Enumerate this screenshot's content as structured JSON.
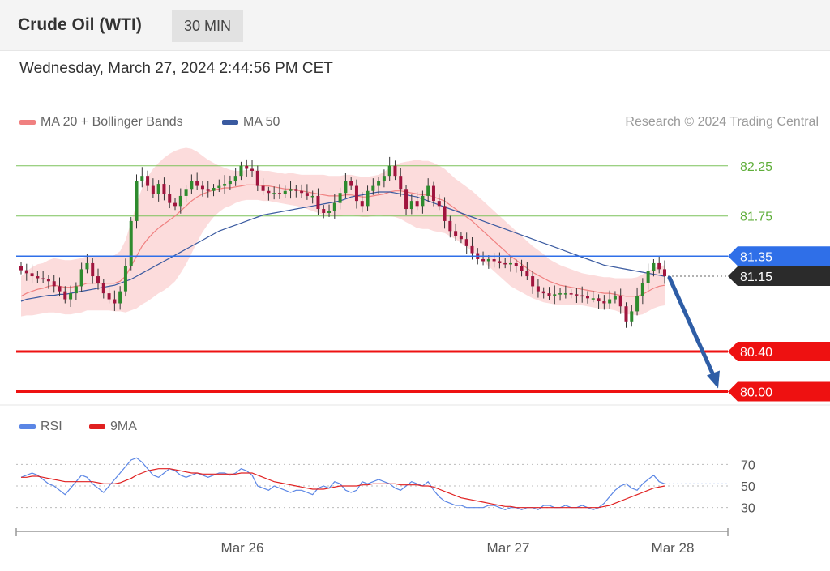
{
  "header": {
    "title": "Crude Oil (WTI)",
    "timeframe": "30 MIN"
  },
  "timestamp": "Wednesday, March 27, 2024 2:44:56 PM CET",
  "legend": {
    "ma20": {
      "label": "MA 20 + Bollinger Bands",
      "color": "#f08080"
    },
    "ma50": {
      "label": "MA 50",
      "color": "#3a5aa0"
    }
  },
  "credit": "Research © 2024 Trading Central",
  "rsi_legend": {
    "rsi": {
      "label": "RSI",
      "color": "#5b86e5"
    },
    "ma9": {
      "label": "9MA",
      "color": "#e02020"
    }
  },
  "chart_data": [
    {
      "type": "candlestick",
      "title": "Crude Oil (WTI)",
      "timeframe": "30 MIN",
      "x_ticks": [
        "Mar 26",
        "Mar 27",
        "Mar 28"
      ],
      "ylim": [
        79.98,
        82.45
      ],
      "levels": [
        {
          "value": 82.25,
          "label": "82.25",
          "color": "#7cc25a",
          "style": "thin"
        },
        {
          "value": 81.75,
          "label": "81.75",
          "color": "#7cc25a",
          "style": "thin"
        },
        {
          "value": 81.35,
          "label": "81.35",
          "color": "#2f6fe8",
          "style": "pivot"
        },
        {
          "value": 80.4,
          "label": "80.40",
          "color": "#ee1111",
          "style": "support"
        },
        {
          "value": 80.0,
          "label": "80.00",
          "color": "#ee1111",
          "style": "support"
        }
      ],
      "last_price": {
        "value": 81.15,
        "label": "81.15"
      },
      "forecast_arrow": {
        "from": 81.15,
        "to": 80.0,
        "color": "#2e5da6"
      },
      "close": [
        81.21,
        81.18,
        81.15,
        81.13,
        81.12,
        81.1,
        81.05,
        81.0,
        80.92,
        80.98,
        81.05,
        81.22,
        81.28,
        81.15,
        81.08,
        80.98,
        80.92,
        80.88,
        81.0,
        81.25,
        81.7,
        82.1,
        82.15,
        82.05,
        81.97,
        82.07,
        81.97,
        81.88,
        81.85,
        81.95,
        82.02,
        82.1,
        82.05,
        82.02,
        82.0,
        82.03,
        82.05,
        82.07,
        82.1,
        82.15,
        82.25,
        82.22,
        82.2,
        82.05,
        82.0,
        81.98,
        81.98,
        81.97,
        82.0,
        82.02,
        82.0,
        81.98,
        81.95,
        81.95,
        81.82,
        81.78,
        81.8,
        81.88,
        81.98,
        82.1,
        82.05,
        81.9,
        81.85,
        82.0,
        82.05,
        82.1,
        82.15,
        82.25,
        82.15,
        82.02,
        81.82,
        81.9,
        81.85,
        81.95,
        82.05,
        81.9,
        81.85,
        81.7,
        81.6,
        81.55,
        81.52,
        81.45,
        81.38,
        81.32,
        81.3,
        81.32,
        81.3,
        81.28,
        81.27,
        81.28,
        81.25,
        81.2,
        81.15,
        81.05,
        81.0,
        80.98,
        80.95,
        80.97,
        80.98,
        80.98,
        80.97,
        80.96,
        80.95,
        80.93,
        80.93,
        80.9,
        80.88,
        80.92,
        80.95,
        80.85,
        80.7,
        80.8,
        80.95,
        81.08,
        81.2,
        81.28,
        81.22,
        81.15
      ],
      "ma20": [
        80.95,
        80.98,
        81.0,
        81.02,
        81.03,
        81.05,
        81.06,
        81.05,
        81.04,
        81.04,
        81.05,
        81.06,
        81.08,
        81.08,
        81.08,
        81.08,
        81.08,
        81.08,
        81.1,
        81.15,
        81.25,
        81.35,
        81.45,
        81.52,
        81.58,
        81.63,
        81.67,
        81.71,
        81.75,
        81.8,
        81.85,
        81.9,
        81.94,
        81.97,
        81.99,
        82.01,
        82.02,
        82.03,
        82.03,
        82.04,
        82.05,
        82.06,
        82.06,
        82.06,
        82.05,
        82.05,
        82.04,
        82.03,
        82.02,
        82.02,
        82.01,
        82.0,
        81.99,
        81.98,
        81.97,
        81.96,
        81.95,
        81.95,
        81.95,
        81.96,
        81.96,
        81.95,
        81.94,
        81.94,
        81.95,
        81.96,
        81.97,
        81.99,
        82.0,
        82.0,
        81.99,
        81.98,
        81.97,
        81.96,
        81.96,
        81.94,
        81.92,
        81.9,
        81.86,
        81.82,
        81.78,
        81.74,
        81.7,
        81.65,
        81.6,
        81.55,
        81.5,
        81.45,
        81.4,
        81.35,
        81.31,
        81.27,
        81.23,
        81.19,
        81.16,
        81.13,
        81.1,
        81.08,
        81.06,
        81.05,
        81.04,
        81.03,
        81.02,
        81.01,
        81.0,
        80.99,
        80.98,
        80.98,
        80.97,
        80.96,
        80.95,
        80.95,
        80.95,
        80.97,
        81.0,
        81.03,
        81.05,
        81.06
      ],
      "ma50": [
        80.9,
        80.92,
        80.93,
        80.94,
        80.95,
        80.96,
        80.96,
        80.97,
        80.97,
        80.98,
        80.99,
        81.0,
        81.01,
        81.02,
        81.03,
        81.04,
        81.05,
        81.06,
        81.08,
        81.1,
        81.12,
        81.15,
        81.18,
        81.21,
        81.24,
        81.27,
        81.3,
        81.33,
        81.36,
        81.39,
        81.42,
        81.45,
        81.48,
        81.51,
        81.54,
        81.57,
        81.6,
        81.62,
        81.64,
        81.66,
        81.68,
        81.7,
        81.72,
        81.74,
        81.76,
        81.77,
        81.78,
        81.79,
        81.8,
        81.81,
        81.82,
        81.83,
        81.84,
        81.85,
        81.86,
        81.87,
        81.88,
        81.89,
        81.9,
        81.92,
        81.94,
        81.95,
        81.96,
        81.97,
        81.98,
        81.99,
        81.99,
        81.99,
        81.98,
        81.97,
        81.96,
        81.95,
        81.94,
        81.92,
        81.9,
        81.88,
        81.86,
        81.84,
        81.82,
        81.8,
        81.78,
        81.76,
        81.74,
        81.72,
        81.7,
        81.68,
        81.66,
        81.64,
        81.62,
        81.6,
        81.58,
        81.56,
        81.54,
        81.52,
        81.5,
        81.48,
        81.46,
        81.44,
        81.42,
        81.4,
        81.38,
        81.36,
        81.34,
        81.32,
        81.3,
        81.28,
        81.26,
        81.25,
        81.24,
        81.23,
        81.22,
        81.21,
        81.2,
        81.19,
        81.18,
        81.17,
        81.16,
        81.15
      ],
      "bollinger_width": [
        0.2,
        0.22,
        0.24,
        0.25,
        0.25,
        0.26,
        0.27,
        0.27,
        0.27,
        0.27,
        0.27,
        0.27,
        0.27,
        0.27,
        0.27,
        0.27,
        0.27,
        0.28,
        0.3,
        0.36,
        0.44,
        0.52,
        0.58,
        0.62,
        0.64,
        0.65,
        0.66,
        0.66,
        0.65,
        0.62,
        0.58,
        0.52,
        0.45,
        0.38,
        0.32,
        0.27,
        0.23,
        0.2,
        0.18,
        0.16,
        0.15,
        0.15,
        0.15,
        0.15,
        0.15,
        0.15,
        0.15,
        0.15,
        0.15,
        0.16,
        0.16,
        0.16,
        0.17,
        0.18,
        0.19,
        0.2,
        0.2,
        0.2,
        0.2,
        0.2,
        0.2,
        0.2,
        0.2,
        0.2,
        0.2,
        0.2,
        0.22,
        0.24,
        0.26,
        0.28,
        0.3,
        0.32,
        0.34,
        0.34,
        0.34,
        0.34,
        0.33,
        0.32,
        0.31,
        0.3,
        0.3,
        0.3,
        0.3,
        0.3,
        0.3,
        0.3,
        0.3,
        0.3,
        0.3,
        0.3,
        0.29,
        0.28,
        0.27,
        0.26,
        0.25,
        0.24,
        0.22,
        0.21,
        0.2,
        0.19,
        0.18,
        0.17,
        0.16,
        0.16,
        0.16,
        0.16,
        0.16,
        0.16,
        0.16,
        0.17,
        0.18,
        0.18,
        0.19,
        0.2,
        0.2,
        0.2,
        0.2,
        0.2
      ]
    },
    {
      "type": "line",
      "title": "RSI",
      "series_names": [
        "RSI",
        "9MA"
      ],
      "ylim": [
        20,
        80
      ],
      "y_ticks": [
        70,
        50,
        30
      ],
      "rsi": [
        58,
        60,
        62,
        60,
        56,
        52,
        50,
        46,
        42,
        48,
        54,
        60,
        58,
        52,
        48,
        44,
        50,
        56,
        62,
        68,
        74,
        76,
        72,
        66,
        60,
        58,
        62,
        66,
        64,
        60,
        58,
        60,
        62,
        60,
        58,
        60,
        62,
        62,
        60,
        62,
        66,
        64,
        60,
        50,
        48,
        46,
        50,
        48,
        46,
        44,
        46,
        46,
        44,
        42,
        48,
        50,
        48,
        54,
        52,
        46,
        44,
        46,
        54,
        52,
        54,
        56,
        54,
        52,
        48,
        46,
        50,
        54,
        52,
        50,
        54,
        46,
        40,
        36,
        34,
        32,
        32,
        30,
        30,
        30,
        30,
        32,
        32,
        30,
        28,
        30,
        30,
        28,
        30,
        30,
        28,
        32,
        32,
        30,
        30,
        32,
        30,
        30,
        32,
        30,
        28,
        30,
        34,
        40,
        46,
        50,
        52,
        48,
        46,
        52,
        56,
        60,
        54,
        52
      ],
      "ma9": [
        58,
        58,
        59,
        59,
        58,
        57,
        56,
        55,
        54,
        54,
        54,
        54,
        54,
        54,
        53,
        52,
        52,
        52,
        53,
        55,
        57,
        60,
        62,
        64,
        65,
        66,
        66,
        66,
        65,
        64,
        63,
        62,
        62,
        61,
        61,
        61,
        61,
        61,
        61,
        61,
        62,
        62,
        62,
        60,
        58,
        56,
        54,
        53,
        52,
        51,
        50,
        49,
        48,
        47,
        47,
        47,
        48,
        49,
        50,
        50,
        50,
        50,
        51,
        51,
        52,
        52,
        52,
        52,
        52,
        51,
        51,
        51,
        51,
        50,
        50,
        49,
        47,
        45,
        43,
        41,
        39,
        38,
        37,
        36,
        35,
        34,
        33,
        32,
        31,
        31,
        30,
        30,
        30,
        30,
        30,
        30,
        30,
        30,
        30,
        30,
        30,
        30,
        30,
        30,
        30,
        30,
        31,
        32,
        34,
        36,
        38,
        40,
        42,
        44,
        46,
        48,
        49,
        50
      ]
    }
  ]
}
